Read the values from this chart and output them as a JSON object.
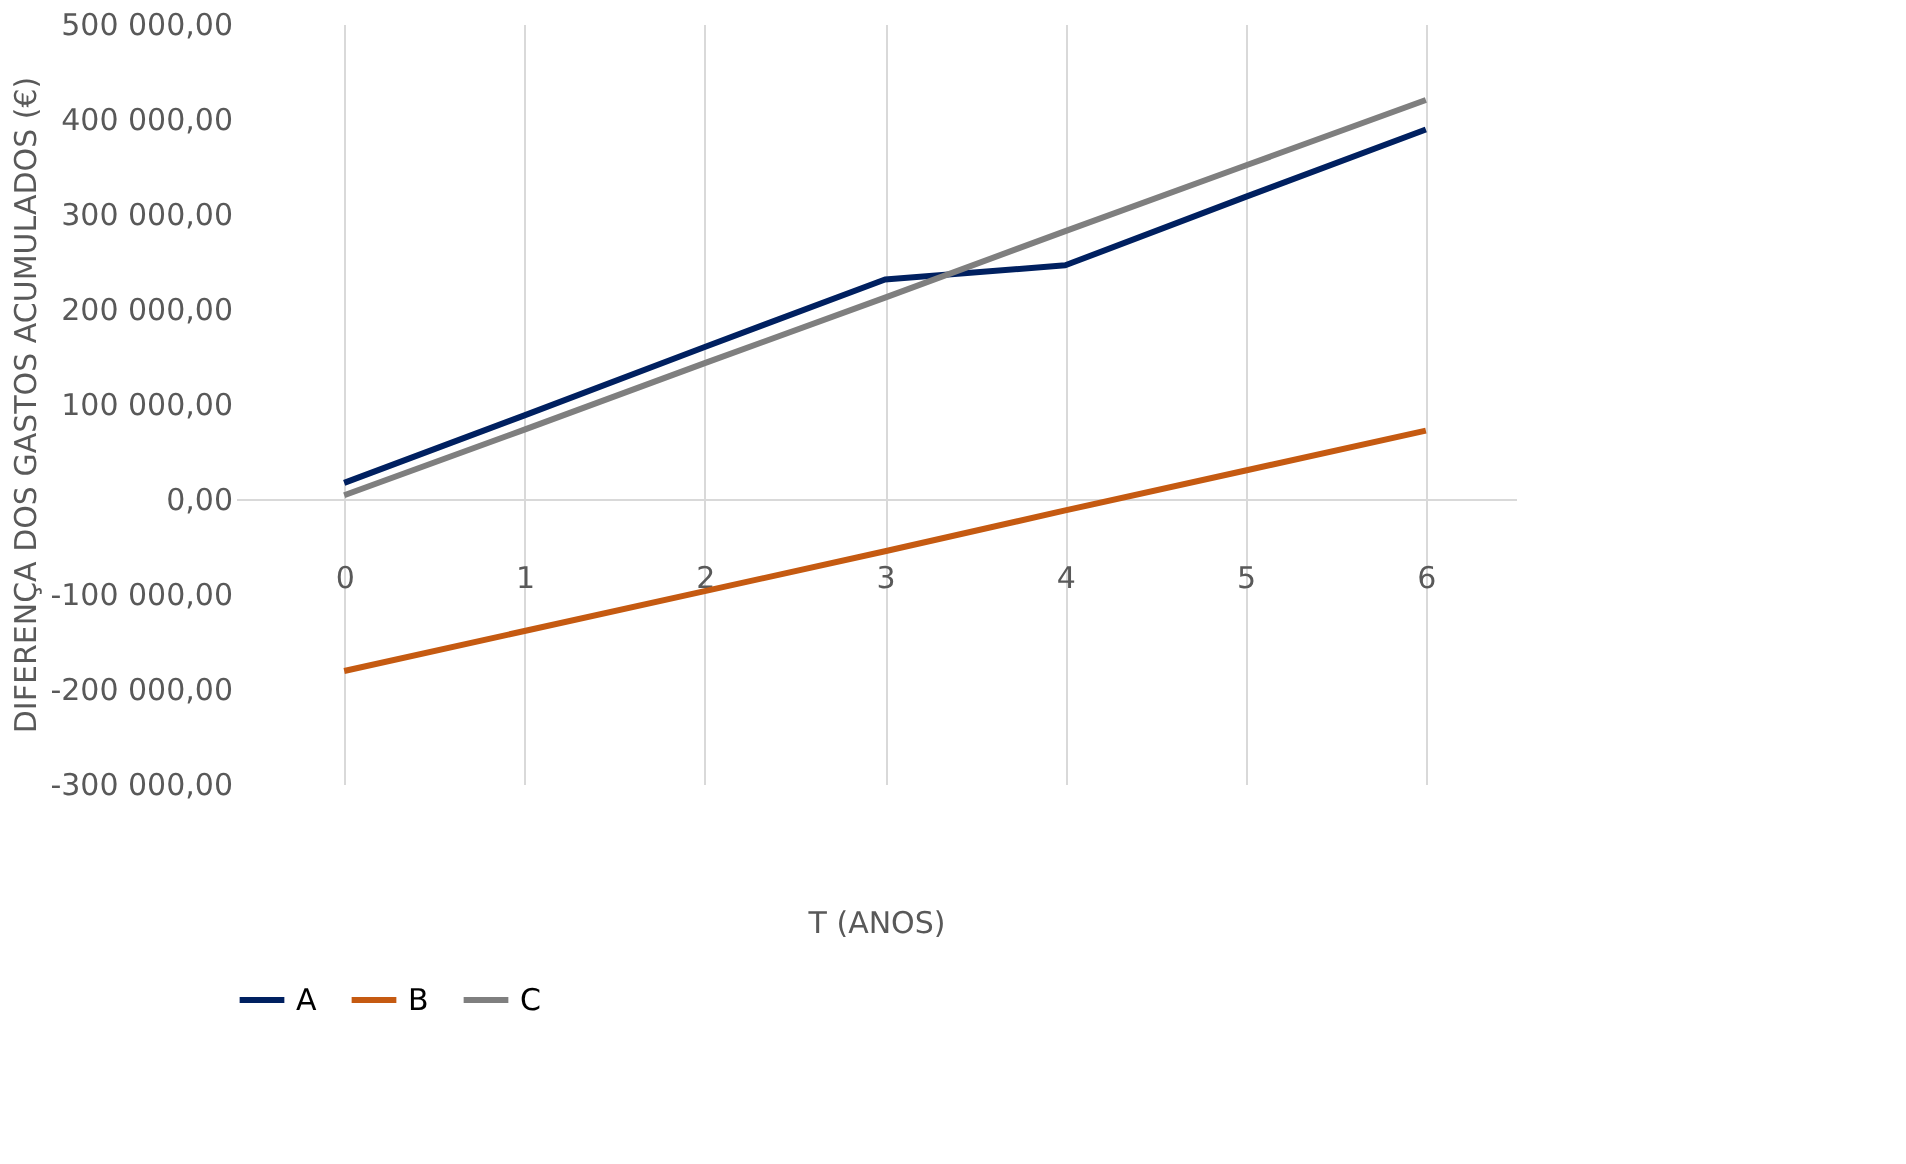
{
  "chart_data": {
    "type": "line",
    "xlabel": "T (ANOS)",
    "ylabel": "DIFERENÇA DOS GASTOS ACUMULADOS (€)",
    "categories": [
      "0",
      "1",
      "2",
      "3",
      "4",
      "5",
      "6"
    ],
    "series": [
      {
        "name": "A",
        "color": "#002060",
        "values": [
          17000,
          88000,
          160000,
          231000,
          246000,
          318000,
          389000
        ]
      },
      {
        "name": "B",
        "color": "#c55a11",
        "values": [
          -181000,
          -139000,
          -97000,
          -55000,
          -12000,
          30000,
          72000
        ]
      },
      {
        "name": "C",
        "color": "#7f7f7f",
        "values": [
          4000,
          73000,
          143000,
          212000,
          282000,
          351000,
          420000
        ]
      }
    ],
    "ylim": [
      -300000,
      500000
    ],
    "yticks": [
      {
        "value": -300000,
        "label": "-300 000,00"
      },
      {
        "value": -200000,
        "label": "-200 000,00"
      },
      {
        "value": -100000,
        "label": "-100 000,00"
      },
      {
        "value": 0,
        "label": "0,00"
      },
      {
        "value": 100000,
        "label": "100 000,00"
      },
      {
        "value": 200000,
        "label": "200 000,00"
      },
      {
        "value": 300000,
        "label": "300 000,00"
      },
      {
        "value": 400000,
        "label": "400 000,00"
      },
      {
        "value": 500000,
        "label": "500 000,00"
      }
    ],
    "grid": "x",
    "legend": "bottom",
    "marker": "none",
    "line_style": "solid"
  }
}
